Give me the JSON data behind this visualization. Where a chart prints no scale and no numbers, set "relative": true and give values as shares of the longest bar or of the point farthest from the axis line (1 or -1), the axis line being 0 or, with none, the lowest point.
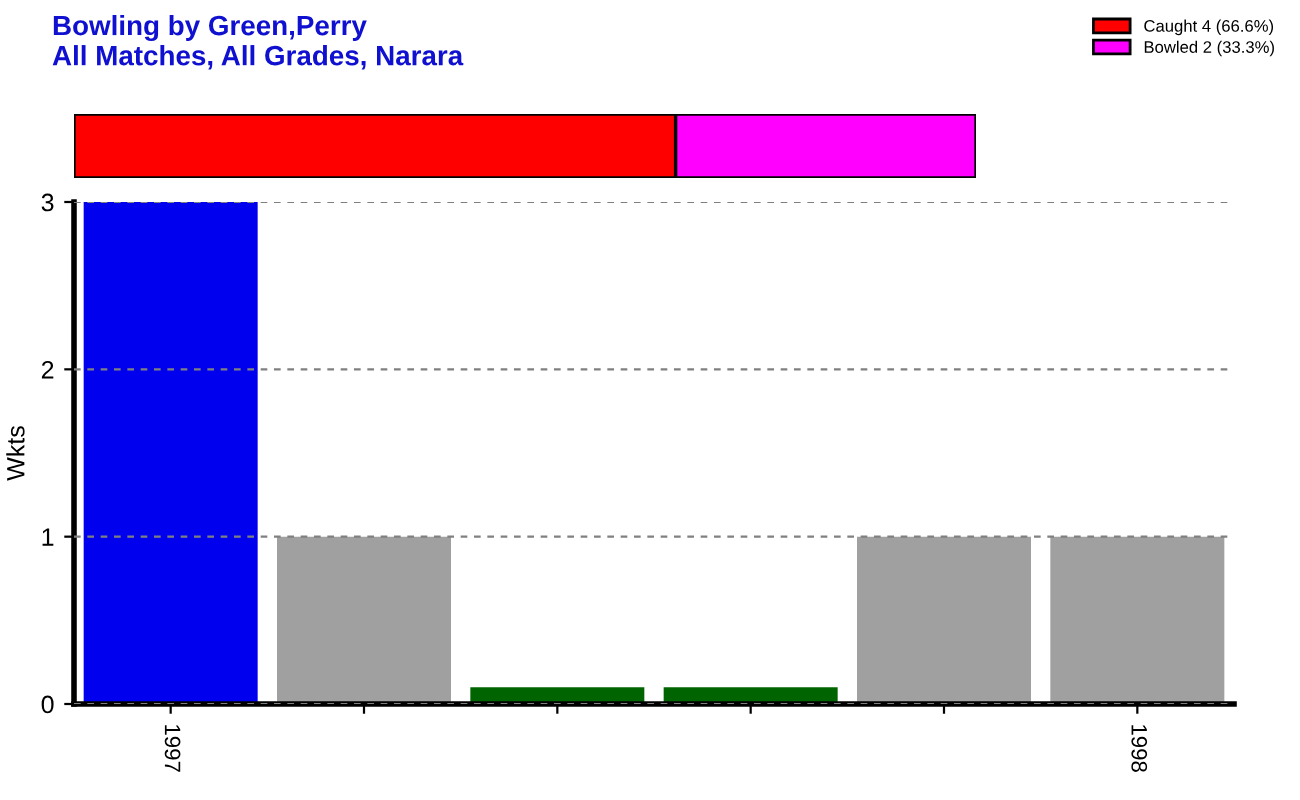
{
  "chart_data": [
    {
      "type": "bar",
      "title": "Bowling by Green,Perry",
      "subtitle": "All Matches, All Grades, Narara",
      "orientation": "horizontal",
      "stacked": true,
      "relative": true,
      "categories": [
        null
      ],
      "legend": "top right",
      "series": [
        {
          "name": "Caught 4 (66.6%)",
          "color": "#ff0000",
          "values": [
            0.667
          ]
        },
        {
          "name": "Bowled 2 (33.3%)",
          "color": "#ff00ff",
          "values": [
            0.333
          ]
        }
      ]
    },
    {
      "type": "bar",
      "ylabel": "Wkts",
      "categories": [
        "1997",
        null,
        null,
        null,
        null,
        "1998"
      ],
      "values": [
        3,
        1,
        0.1,
        0.1,
        1,
        1
      ],
      "colors": [
        "#0000ee",
        "#a0a0a0",
        "#006400",
        "#006400",
        "#a0a0a0",
        "#a0a0a0"
      ],
      "ylim": [
        0,
        3
      ],
      "yticks": [
        0,
        1,
        2,
        3
      ],
      "grid": "y"
    }
  ]
}
